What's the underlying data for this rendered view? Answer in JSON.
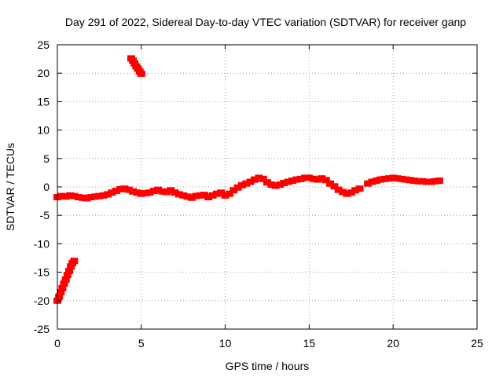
{
  "chart_data": {
    "type": "scatter",
    "title": "Day 291 of 2022, Sidereal Day-to-day VTEC variation (SDTVAR) for receiver ganp",
    "xlabel": "GPS time / hours",
    "ylabel": "SDTVAR / TECUs",
    "xlim": [
      0,
      25
    ],
    "ylim": [
      -25,
      25
    ],
    "xticks": [
      0,
      5,
      10,
      15,
      20,
      25
    ],
    "yticks": [
      -25,
      -20,
      -15,
      -10,
      -5,
      0,
      5,
      10,
      15,
      20,
      25
    ],
    "grid": true,
    "legend": "none",
    "series_color": "#ff0000",
    "series": [
      {
        "name": "SDTVAR",
        "x": [
          0.0,
          0.1,
          0.2,
          0.3,
          0.4,
          0.5,
          0.6,
          0.7,
          0.8,
          0.9,
          1.0,
          4.4,
          4.5,
          4.6,
          4.7,
          4.8,
          4.9,
          5.0,
          0.0,
          0.25,
          0.5,
          0.75,
          1.0,
          1.25,
          1.5,
          1.75,
          2.0,
          2.25,
          2.5,
          2.75,
          3.0,
          3.25,
          3.5,
          3.75,
          4.0,
          4.25,
          4.5,
          4.75,
          5.0,
          5.25,
          5.5,
          5.75,
          6.0,
          6.25,
          6.5,
          6.75,
          7.0,
          7.25,
          7.5,
          7.75,
          8.0,
          8.25,
          8.5,
          8.75,
          9.0,
          9.25,
          9.5,
          9.75,
          10.0,
          10.25,
          10.5,
          10.75,
          11.0,
          11.25,
          11.5,
          11.75,
          12.0,
          12.25,
          12.5,
          12.75,
          13.0,
          13.25,
          13.5,
          13.75,
          14.0,
          14.25,
          14.5,
          14.75,
          15.0,
          15.25,
          15.5,
          15.75,
          16.0,
          16.25,
          16.5,
          16.75,
          17.0,
          17.25,
          17.5,
          17.75,
          18.0,
          18.5,
          18.75,
          19.0,
          19.25,
          19.5,
          19.75,
          20.0,
          20.25,
          20.5,
          20.75,
          21.0,
          21.25,
          21.5,
          21.75,
          22.0,
          22.25,
          22.5,
          22.75
        ],
        "y": [
          -20.0,
          -19.3,
          -18.5,
          -17.8,
          -17.0,
          -16.3,
          -15.5,
          -14.8,
          -14.0,
          -13.4,
          -13.0,
          22.6,
          22.2,
          21.7,
          21.2,
          20.8,
          20.3,
          19.9,
          -1.8,
          -1.6,
          -1.7,
          -1.5,
          -1.6,
          -1.8,
          -1.9,
          -2.0,
          -1.8,
          -1.7,
          -1.6,
          -1.5,
          -1.3,
          -1.0,
          -0.7,
          -0.4,
          -0.3,
          -0.5,
          -0.8,
          -1.0,
          -1.2,
          -1.1,
          -1.0,
          -0.7,
          -0.5,
          -0.8,
          -0.9,
          -0.6,
          -1.0,
          -1.3,
          -1.5,
          -1.7,
          -1.9,
          -1.6,
          -1.5,
          -1.4,
          -1.8,
          -1.5,
          -1.2,
          -1.0,
          -1.5,
          -1.2,
          -0.6,
          -0.1,
          0.3,
          0.6,
          0.9,
          1.3,
          1.6,
          1.4,
          0.8,
          0.4,
          0.2,
          0.4,
          0.7,
          0.9,
          1.1,
          1.3,
          1.4,
          1.6,
          1.6,
          1.4,
          1.3,
          1.5,
          1.2,
          0.6,
          0.1,
          -0.5,
          -0.9,
          -1.2,
          -1.0,
          -0.6,
          -0.3,
          0.6,
          0.9,
          1.1,
          1.3,
          1.4,
          1.5,
          1.6,
          1.5,
          1.4,
          1.3,
          1.2,
          1.1,
          1.0,
          1.0,
          0.9,
          0.9,
          1.0,
          1.1
        ]
      }
    ]
  }
}
